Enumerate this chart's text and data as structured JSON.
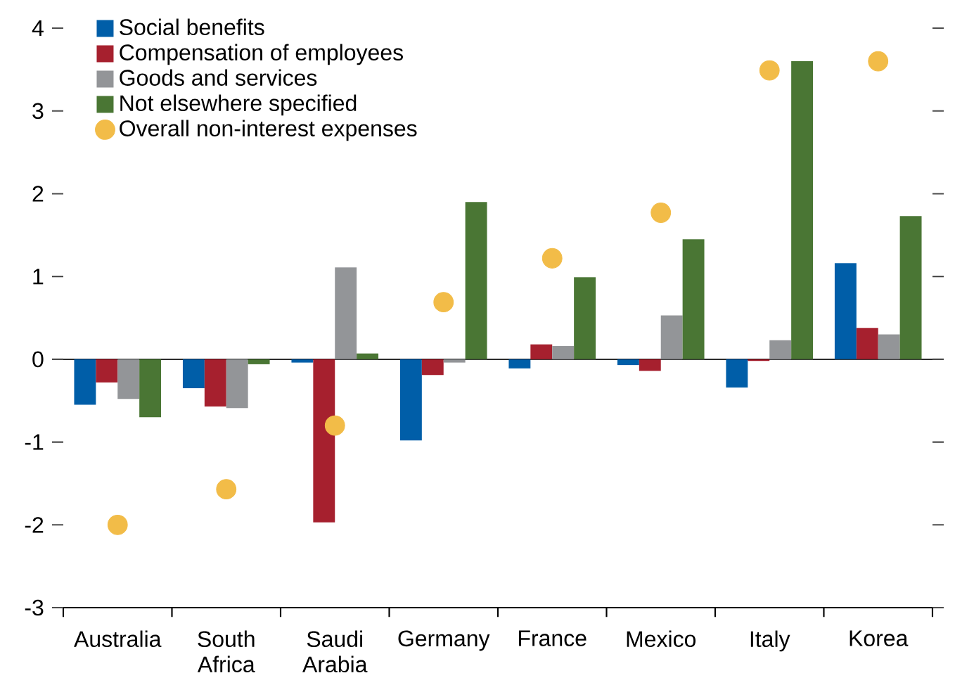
{
  "chart_data": {
    "type": "bar",
    "categories": [
      "Australia",
      "South Africa",
      "Saudi Arabia",
      "Germany",
      "France",
      "Mexico",
      "Italy",
      "Korea"
    ],
    "ylim": [
      -3,
      4
    ],
    "yticks": [
      -3,
      -2,
      -1,
      0,
      1,
      2,
      3,
      4
    ],
    "legend": "top left",
    "series": [
      {
        "name": "Social benefits",
        "color": "#005ea8",
        "values": [
          -0.55,
          -0.35,
          -0.04,
          -0.98,
          -0.11,
          -0.07,
          -0.34,
          1.16
        ]
      },
      {
        "name": "Compensation of employees",
        "color": "#a6202e",
        "values": [
          -0.28,
          -0.57,
          -1.97,
          -0.19,
          0.18,
          -0.14,
          -0.02,
          0.38
        ]
      },
      {
        "name": "Goods and services",
        "color": "#939598",
        "values": [
          -0.48,
          -0.59,
          1.11,
          -0.04,
          0.16,
          0.53,
          0.23,
          0.3
        ]
      },
      {
        "name": "Not elsewhere specified",
        "color": "#4a7634",
        "values": [
          -0.7,
          -0.06,
          0.07,
          1.9,
          0.99,
          1.45,
          3.6,
          1.73
        ]
      },
      {
        "name": "Overall non-interest expenses",
        "color": "#f2bc48",
        "type": "scatter",
        "marker": "circle",
        "x": [
          "Australia",
          "South Africa",
          "Saudi Arabia",
          "Germany",
          "France",
          "Mexico",
          "Italy",
          "Korea"
        ],
        "values": [
          -2.0,
          -1.57,
          -0.8,
          0.69,
          1.22,
          1.77,
          3.49,
          3.6
        ]
      }
    ]
  }
}
